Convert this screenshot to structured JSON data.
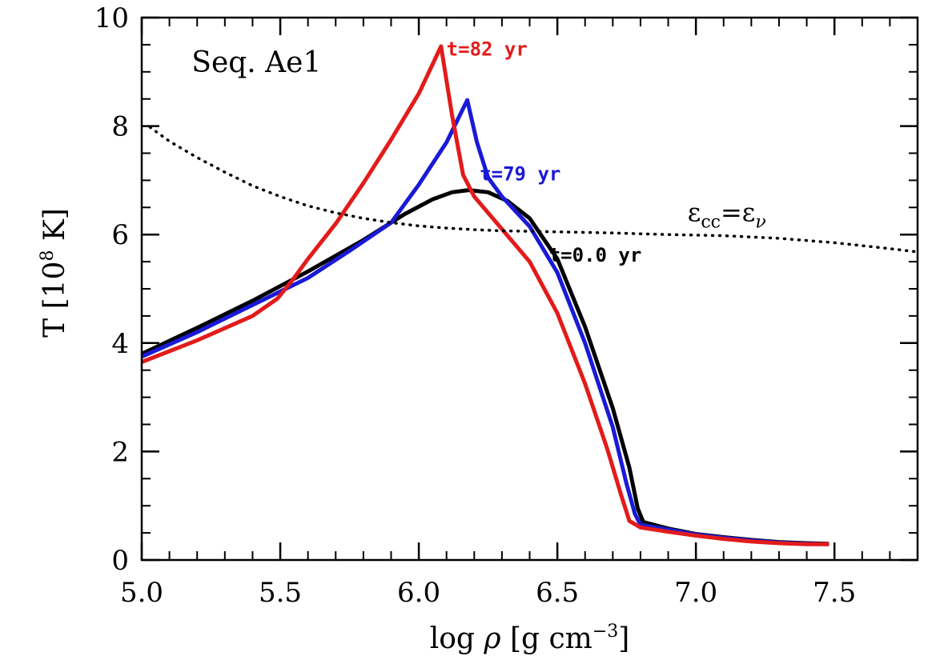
{
  "chart_data": {
    "type": "line",
    "title": "Seq. Ae1",
    "xlabel": {
      "pre": "log ",
      "sym": "ρ",
      "mid": " [g cm",
      "sup": "−3",
      "post": "]"
    },
    "ylabel": {
      "pre": "T [10",
      "sup": "8",
      "post": " K]"
    },
    "xlim": [
      5.0,
      7.8
    ],
    "ylim": [
      0,
      10
    ],
    "xticks": [
      {
        "value": 5.0,
        "label": "5.0"
      },
      {
        "value": 5.5,
        "label": "5.5"
      },
      {
        "value": 6.0,
        "label": "6.0"
      },
      {
        "value": 6.5,
        "label": "6.5"
      },
      {
        "value": 7.0,
        "label": "7.0"
      },
      {
        "value": 7.5,
        "label": "7.5"
      }
    ],
    "yticks": [
      {
        "value": 0,
        "label": "0"
      },
      {
        "value": 2,
        "label": "2"
      },
      {
        "value": 4,
        "label": "4"
      },
      {
        "value": 6,
        "label": "6"
      },
      {
        "value": 8,
        "label": "8"
      },
      {
        "value": 10,
        "label": "10"
      }
    ],
    "x_minor_step": 0.1,
    "y_minor_step": 0.5,
    "grid": false,
    "series": [
      {
        "name": "t=0.0 yr",
        "color": "#000000",
        "style": "solid",
        "points": [
          [
            5.0,
            3.8
          ],
          [
            5.2,
            4.28
          ],
          [
            5.4,
            4.78
          ],
          [
            5.6,
            5.32
          ],
          [
            5.8,
            5.9
          ],
          [
            5.95,
            6.38
          ],
          [
            6.05,
            6.65
          ],
          [
            6.12,
            6.78
          ],
          [
            6.18,
            6.82
          ],
          [
            6.25,
            6.78
          ],
          [
            6.32,
            6.62
          ],
          [
            6.4,
            6.3
          ],
          [
            6.5,
            5.55
          ],
          [
            6.6,
            4.3
          ],
          [
            6.7,
            2.8
          ],
          [
            6.76,
            1.7
          ],
          [
            6.79,
            0.95
          ],
          [
            6.81,
            0.7
          ],
          [
            6.9,
            0.58
          ],
          [
            7.0,
            0.48
          ],
          [
            7.1,
            0.42
          ],
          [
            7.2,
            0.37
          ],
          [
            7.3,
            0.33
          ],
          [
            7.4,
            0.31
          ],
          [
            7.48,
            0.3
          ]
        ]
      },
      {
        "name": "t=79 yr",
        "color": "#1a1ad6",
        "style": "solid",
        "points": [
          [
            5.0,
            3.75
          ],
          [
            5.2,
            4.2
          ],
          [
            5.4,
            4.7
          ],
          [
            5.6,
            5.2
          ],
          [
            5.75,
            5.7
          ],
          [
            5.9,
            6.22
          ],
          [
            6.0,
            6.92
          ],
          [
            6.1,
            7.7
          ],
          [
            6.175,
            8.48
          ],
          [
            6.21,
            7.7
          ],
          [
            6.25,
            7.05
          ],
          [
            6.3,
            6.7
          ],
          [
            6.4,
            6.15
          ],
          [
            6.5,
            5.3
          ],
          [
            6.6,
            4.0
          ],
          [
            6.7,
            2.45
          ],
          [
            6.75,
            1.4
          ],
          [
            6.78,
            0.85
          ],
          [
            6.8,
            0.65
          ],
          [
            6.9,
            0.56
          ],
          [
            7.0,
            0.47
          ],
          [
            7.1,
            0.41
          ],
          [
            7.2,
            0.36
          ],
          [
            7.3,
            0.32
          ],
          [
            7.4,
            0.3
          ],
          [
            7.48,
            0.29
          ]
        ]
      },
      {
        "name": "t=82 yr",
        "color": "#e21b1b",
        "style": "solid",
        "points": [
          [
            5.0,
            3.65
          ],
          [
            5.2,
            4.05
          ],
          [
            5.4,
            4.5
          ],
          [
            5.49,
            4.82
          ],
          [
            5.55,
            5.2
          ],
          [
            5.6,
            5.55
          ],
          [
            5.7,
            6.2
          ],
          [
            5.8,
            6.95
          ],
          [
            5.9,
            7.75
          ],
          [
            6.0,
            8.6
          ],
          [
            6.08,
            9.47
          ],
          [
            6.12,
            8.2
          ],
          [
            6.16,
            7.1
          ],
          [
            6.2,
            6.7
          ],
          [
            6.3,
            6.1
          ],
          [
            6.4,
            5.5
          ],
          [
            6.5,
            4.55
          ],
          [
            6.6,
            3.25
          ],
          [
            6.68,
            2.05
          ],
          [
            6.73,
            1.2
          ],
          [
            6.76,
            0.72
          ],
          [
            6.8,
            0.6
          ],
          [
            6.9,
            0.52
          ],
          [
            7.0,
            0.45
          ],
          [
            7.1,
            0.39
          ],
          [
            7.2,
            0.34
          ],
          [
            7.3,
            0.31
          ],
          [
            7.4,
            0.29
          ],
          [
            7.48,
            0.29
          ]
        ]
      },
      {
        "name": "ε_cc=ε_ν",
        "color": "#000000",
        "style": "dotted",
        "points": [
          [
            5.03,
            7.98
          ],
          [
            5.1,
            7.72
          ],
          [
            5.2,
            7.42
          ],
          [
            5.3,
            7.15
          ],
          [
            5.4,
            6.9
          ],
          [
            5.5,
            6.7
          ],
          [
            5.6,
            6.53
          ],
          [
            5.7,
            6.4
          ],
          [
            5.8,
            6.3
          ],
          [
            5.9,
            6.22
          ],
          [
            6.0,
            6.16
          ],
          [
            6.1,
            6.12
          ],
          [
            6.2,
            6.09
          ],
          [
            6.3,
            6.07
          ],
          [
            6.5,
            6.05
          ],
          [
            6.7,
            6.03
          ],
          [
            6.9,
            6.0
          ],
          [
            7.1,
            5.98
          ],
          [
            7.3,
            5.93
          ],
          [
            7.5,
            5.85
          ],
          [
            7.7,
            5.74
          ],
          [
            7.8,
            5.68
          ]
        ]
      }
    ],
    "annotations": [
      {
        "text": "t=82 yr",
        "color": "#e21b1b",
        "x": 6.1,
        "y": 9.3
      },
      {
        "text": "t=79 yr",
        "color": "#1a1ad6",
        "x": 6.22,
        "y": 7.0
      },
      {
        "text": "t=0.0 yr",
        "color": "#000000",
        "x": 6.47,
        "y": 5.5
      },
      {
        "text": "Seq. Ae1",
        "color": "#000000",
        "x": 5.18,
        "y": 9.0
      }
    ],
    "eps_label": {
      "base1": "ε",
      "sub1": "cc",
      "eq": "=",
      "base2": "ε",
      "sub2": "ν",
      "x": 6.97,
      "y": 6.25
    }
  }
}
